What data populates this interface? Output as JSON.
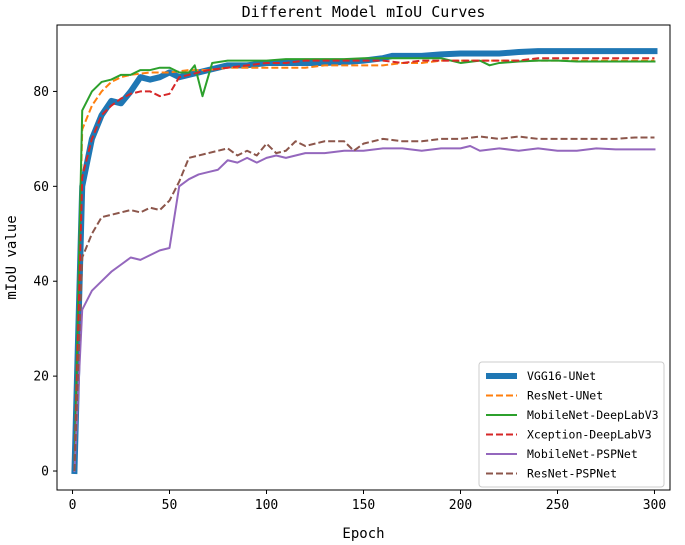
{
  "chart_data": {
    "type": "line",
    "title": "Different Model mIoU Curves",
    "xlabel": "Epoch",
    "ylabel": "mIoU value",
    "xlim": [
      -8,
      308
    ],
    "ylim": [
      -4,
      94
    ],
    "xticks": [
      0,
      50,
      100,
      150,
      200,
      250,
      300
    ],
    "yticks": [
      0,
      20,
      40,
      60,
      80
    ],
    "grid": false,
    "legend_position": "bottom-right",
    "series": [
      {
        "name": "VGG16-UNet",
        "color": "#1f77b4",
        "style": "solid",
        "width": 6,
        "x": [
          1,
          5,
          10,
          15,
          20,
          25,
          30,
          35,
          40,
          45,
          50,
          55,
          60,
          65,
          70,
          75,
          80,
          90,
          100,
          110,
          120,
          130,
          140,
          150,
          160,
          165,
          170,
          180,
          190,
          200,
          210,
          220,
          230,
          240,
          250,
          260,
          270,
          280,
          290,
          300
        ],
        "y": [
          0,
          60,
          70,
          75,
          78,
          77.5,
          80,
          83,
          82.5,
          83,
          84,
          83,
          83.5,
          84,
          84.5,
          85,
          85.5,
          85.5,
          86,
          86,
          86,
          86,
          86.2,
          86.5,
          87,
          87.5,
          87.5,
          87.5,
          87.8,
          88,
          88,
          88,
          88.3,
          88.5,
          88.5,
          88.5,
          88.5,
          88.5,
          88.5,
          88.5
        ]
      },
      {
        "name": "ResNet-UNet",
        "color": "#ff7f0e",
        "style": "dashed",
        "width": 2,
        "x": [
          1,
          5,
          10,
          15,
          20,
          25,
          30,
          40,
          50,
          60,
          70,
          80,
          90,
          100,
          110,
          120,
          130,
          140,
          150,
          160,
          170,
          180,
          190,
          200,
          210,
          220,
          230,
          240,
          250,
          260,
          270,
          280,
          290,
          300
        ],
        "y": [
          0,
          72,
          77,
          80,
          82,
          83,
          83.5,
          84,
          84,
          84.5,
          84.5,
          85,
          85,
          85,
          85,
          85,
          85.5,
          85.5,
          85.5,
          85.5,
          86,
          86,
          86.5,
          86.5,
          86.5,
          86.5,
          86.5,
          86.5,
          86.5,
          86.5,
          86.5,
          86.5,
          86.5,
          86.5
        ]
      },
      {
        "name": "MobileNet-DeepLabV3",
        "color": "#2ca02c",
        "style": "solid",
        "width": 2,
        "x": [
          1,
          5,
          10,
          15,
          20,
          25,
          30,
          35,
          40,
          45,
          50,
          55,
          60,
          63,
          67,
          72,
          80,
          90,
          100,
          110,
          120,
          130,
          140,
          150,
          160,
          170,
          180,
          190,
          200,
          210,
          215,
          220,
          230,
          240,
          250,
          260,
          270,
          280,
          290,
          300
        ],
        "y": [
          0,
          76,
          80,
          82,
          82.5,
          83.5,
          83.5,
          84.5,
          84.5,
          85,
          85,
          84,
          84,
          85.5,
          79,
          86,
          86.5,
          86.5,
          86.5,
          86.8,
          86.8,
          86.8,
          86.8,
          87,
          87,
          87,
          87,
          87,
          86,
          86.5,
          85.5,
          86,
          86.3,
          86.5,
          86.5,
          86.3,
          86.3,
          86.3,
          86.3,
          86.3
        ]
      },
      {
        "name": "Xception-DeepLabV3",
        "color": "#d62728",
        "style": "dashed",
        "width": 2,
        "x": [
          1,
          5,
          10,
          15,
          20,
          25,
          30,
          35,
          40,
          45,
          50,
          55,
          60,
          70,
          80,
          90,
          100,
          110,
          120,
          130,
          140,
          150,
          160,
          170,
          180,
          190,
          200,
          210,
          220,
          230,
          240,
          250,
          260,
          270,
          280,
          290,
          300
        ],
        "y": [
          0,
          62,
          70,
          75,
          77,
          78.5,
          79.5,
          80,
          80,
          79,
          79.5,
          83,
          83.5,
          84.5,
          85,
          85.5,
          86,
          86,
          86.5,
          86.5,
          86.5,
          86.5,
          86.5,
          86,
          86.5,
          86.5,
          86.5,
          86.5,
          86.5,
          86.5,
          87,
          87,
          87,
          87,
          87,
          87,
          87
        ]
      },
      {
        "name": "MobileNet-PSPNet",
        "color": "#9467bd",
        "style": "solid",
        "width": 2,
        "x": [
          1,
          5,
          10,
          15,
          20,
          25,
          30,
          35,
          40,
          45,
          50,
          55,
          60,
          65,
          70,
          75,
          80,
          85,
          90,
          95,
          100,
          105,
          110,
          115,
          120,
          130,
          140,
          150,
          160,
          170,
          180,
          190,
          200,
          205,
          210,
          220,
          230,
          240,
          250,
          260,
          270,
          280,
          290,
          300
        ],
        "y": [
          0,
          34,
          38,
          40,
          42,
          43.5,
          45,
          44.5,
          45.5,
          46.5,
          47,
          60,
          61.5,
          62.5,
          63,
          63.5,
          65.5,
          65,
          66,
          65,
          66,
          66.5,
          66,
          66.5,
          67,
          67,
          67.5,
          67.5,
          68,
          68,
          67.5,
          68,
          68,
          68.5,
          67.5,
          68,
          67.5,
          68,
          67.5,
          67.5,
          68,
          67.8,
          67.8,
          67.8
        ]
      },
      {
        "name": "ResNet-PSPNet",
        "color": "#8c564b",
        "style": "dashed",
        "width": 2,
        "x": [
          1,
          5,
          10,
          15,
          20,
          25,
          30,
          35,
          40,
          45,
          50,
          55,
          60,
          65,
          70,
          75,
          80,
          85,
          90,
          95,
          100,
          105,
          110,
          115,
          120,
          130,
          140,
          145,
          150,
          160,
          170,
          180,
          190,
          200,
          210,
          220,
          230,
          240,
          250,
          260,
          270,
          280,
          290,
          300
        ],
        "y": [
          0,
          45,
          50,
          53.5,
          54,
          54.5,
          55,
          54.5,
          55.5,
          55,
          57,
          61,
          66,
          66.5,
          67,
          67.5,
          68,
          66.5,
          67.5,
          66.5,
          69,
          67,
          67.5,
          69.5,
          68.5,
          69.5,
          69.5,
          67.5,
          69,
          70,
          69.5,
          69.5,
          70,
          70,
          70.5,
          70,
          70.5,
          70,
          70,
          70,
          70,
          70,
          70.3,
          70.3
        ]
      }
    ]
  }
}
